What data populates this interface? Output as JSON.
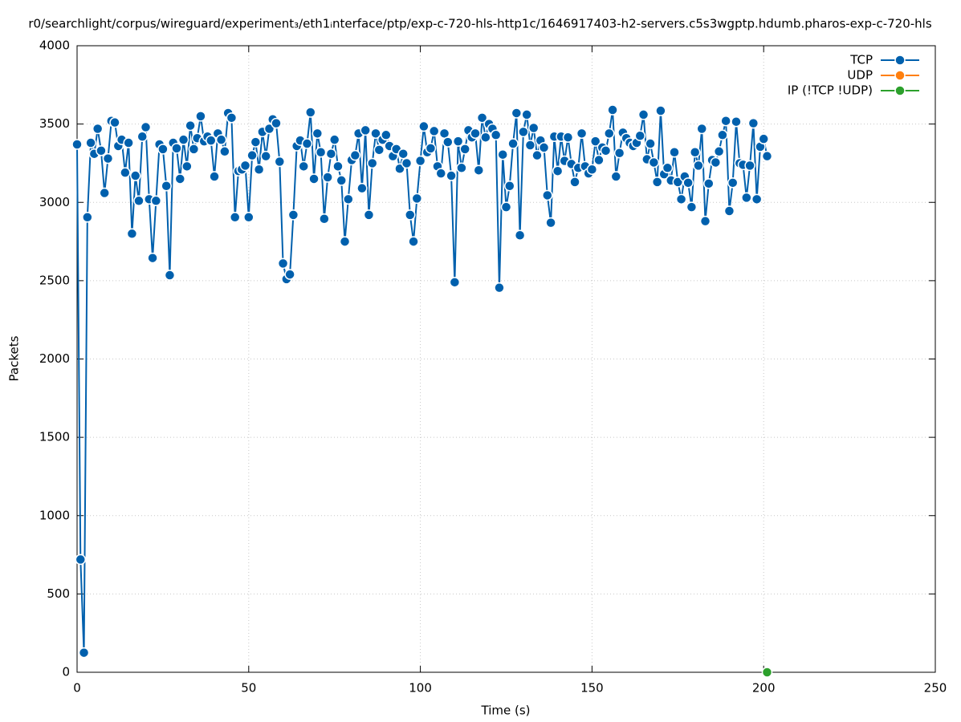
{
  "chart_data": {
    "type": "line",
    "title": "r0/searchlight/corpus/wireguard/experiment₃/eth1ᵢnterface/ptp/exp-c-720-hls-http1c/1646917403-h2-servers.c5s3wgptp.hdumb.pharos-exp-c-720-hls",
    "xlabel": "Time (s)",
    "ylabel": "Packets",
    "xlim": [
      0,
      250
    ],
    "xticks": [
      0,
      50,
      100,
      150,
      200,
      250
    ],
    "ylim": [
      0,
      4000
    ],
    "yticks": [
      0,
      500,
      1000,
      1500,
      2000,
      2500,
      3000,
      3500,
      4000
    ],
    "grid": true,
    "legend": "top right",
    "series": [
      {
        "name": "TCP",
        "color": "#0060ad",
        "x": [
          0,
          1,
          2,
          3,
          4,
          5,
          6,
          7,
          8,
          9,
          10,
          11,
          12,
          13,
          14,
          15,
          16,
          17,
          18,
          19,
          20,
          21,
          22,
          23,
          24,
          25,
          26,
          27,
          28,
          29,
          30,
          31,
          32,
          33,
          34,
          35,
          36,
          37,
          38,
          39,
          40,
          41,
          42,
          43,
          44,
          45,
          46,
          47,
          48,
          49,
          50,
          51,
          52,
          53,
          54,
          55,
          56,
          57,
          58,
          59,
          60,
          61,
          62,
          63,
          64,
          65,
          66,
          67,
          68,
          69,
          70,
          71,
          72,
          73,
          74,
          75,
          76,
          77,
          78,
          79,
          80,
          81,
          82,
          83,
          84,
          85,
          86,
          87,
          88,
          89,
          90,
          91,
          92,
          93,
          94,
          95,
          96,
          97,
          98,
          99,
          100,
          101,
          102,
          103,
          104,
          105,
          106,
          107,
          108,
          109,
          110,
          111,
          112,
          113,
          114,
          115,
          116,
          117,
          118,
          119,
          120,
          121,
          122,
          123,
          124,
          125,
          126,
          127,
          128,
          129,
          130,
          131,
          132,
          133,
          134,
          135,
          136,
          137,
          138,
          139,
          140,
          141,
          142,
          143,
          144,
          145,
          146,
          147,
          148,
          149,
          150,
          151,
          152,
          153,
          154,
          155,
          156,
          157,
          158,
          159,
          160,
          161,
          162,
          163,
          164,
          165,
          166,
          167,
          168,
          169,
          170,
          171,
          172,
          173,
          174,
          175,
          176,
          177,
          178,
          179,
          180,
          181,
          182,
          183,
          184,
          185,
          186,
          187,
          188,
          189,
          190,
          191,
          192,
          193,
          194,
          195,
          196,
          197,
          198,
          199,
          200,
          201
        ],
        "values": [
          3370,
          720,
          125,
          2905,
          3380,
          3310,
          3470,
          3330,
          3060,
          3280,
          3520,
          3510,
          3360,
          3400,
          3190,
          3380,
          2800,
          3170,
          3010,
          3420,
          3480,
          3020,
          2645,
          3010,
          3370,
          3340,
          3105,
          2535,
          3380,
          3345,
          3150,
          3400,
          3230,
          3490,
          3340,
          3410,
          3550,
          3390,
          3420,
          3395,
          3165,
          3440,
          3400,
          3325,
          3570,
          3540,
          2905,
          3200,
          3210,
          3235,
          2905,
          3300,
          3385,
          3210,
          3450,
          3295,
          3470,
          3530,
          3505,
          3260,
          2610,
          2510,
          2540,
          2920,
          3360,
          3395,
          3230,
          3375,
          3575,
          3150,
          3440,
          3320,
          2895,
          3160,
          3310,
          3400,
          3230,
          3140,
          2750,
          3020,
          3270,
          3300,
          3440,
          3090,
          3460,
          2920,
          3250,
          3440,
          3335,
          3400,
          3430,
          3360,
          3295,
          3340,
          3215,
          3310,
          3250,
          2920,
          2750,
          3025,
          3265,
          3485,
          3320,
          3345,
          3455,
          3230,
          3185,
          3440,
          3385,
          3170,
          2490,
          3390,
          3220,
          3340,
          3460,
          3415,
          3440,
          3205,
          3540,
          3415,
          3500,
          3470,
          3430,
          2455,
          3305,
          2970,
          3105,
          3375,
          3570,
          2790,
          3450,
          3560,
          3365,
          3475,
          3300,
          3395,
          3350,
          3045,
          2870,
          3420,
          3200,
          3420,
          3265,
          3415,
          3245,
          3130,
          3220,
          3440,
          3230,
          3185,
          3210,
          3390,
          3270,
          3350,
          3330,
          3440,
          3590,
          3165,
          3315,
          3445,
          3410,
          3380,
          3360,
          3380,
          3425,
          3560,
          3275,
          3375,
          3255,
          3130,
          3585,
          3180,
          3220,
          3140,
          3320,
          3130,
          3020,
          3165,
          3125,
          2970,
          3320,
          3235,
          3470,
          2880,
          3120,
          3270,
          3255,
          3325,
          3430,
          3520,
          2945,
          3125,
          3515,
          3250,
          3240,
          3030,
          3235,
          3505,
          3020,
          3355,
          3405,
          3295
        ]
      },
      {
        "name": "UDP",
        "color": "#ff7f0e",
        "x": [],
        "values": []
      },
      {
        "name": "IP (!TCP  !UDP)",
        "color": "#2ca02c",
        "x": [
          201
        ],
        "values": [
          0
        ]
      }
    ]
  }
}
